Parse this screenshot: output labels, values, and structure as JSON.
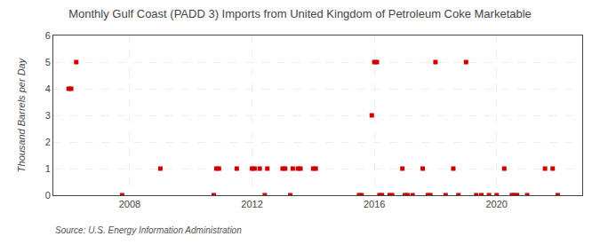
{
  "chart_data": {
    "type": "scatter",
    "title": "Monthly Gulf Coast (PADD 3) Imports from United Kingdom of Petroleum Coke Marketable",
    "ylabel": "Thousand Barrels per Day",
    "annotations": [
      "Source: U.S. Energy Information Administration"
    ],
    "x": [
      2006.0,
      2006.083,
      2006.25,
      2007.75,
      2009.0,
      2010.75,
      2010.917,
      2010.833,
      2011.5,
      2012.0,
      2012.083,
      2012.25,
      2012.417,
      2012.5,
      2013.0,
      2013.083,
      2013.25,
      2013.333,
      2013.5,
      2013.583,
      2014.0,
      2014.083,
      2015.5,
      2015.583,
      2015.917,
      2016.0,
      2016.083,
      2016.167,
      2016.25,
      2016.5,
      2016.583,
      2016.917,
      2017.0,
      2017.083,
      2017.25,
      2017.583,
      2017.75,
      2017.833,
      2018.0,
      2018.333,
      2018.583,
      2018.75,
      2019.0,
      2019.333,
      2019.5,
      2019.75,
      2020.0,
      2020.25,
      2020.5,
      2020.583,
      2020.667,
      2021.0,
      2021.583,
      2021.833,
      2022.0
    ],
    "values": [
      4,
      4,
      5,
      0,
      1,
      0,
      1,
      1,
      1,
      1,
      1,
      1,
      0,
      1,
      1,
      1,
      0,
      1,
      1,
      1,
      1,
      1,
      0,
      0,
      3,
      5,
      5,
      0,
      0,
      0,
      0,
      1,
      0,
      0,
      0,
      1,
      0,
      0,
      5,
      0,
      1,
      0,
      5,
      0,
      0,
      0,
      0,
      1,
      0,
      0,
      0,
      0,
      1,
      1,
      0
    ],
    "color": "#cc0000",
    "marker": "square",
    "xlim": [
      2005.5,
      2022.8
    ],
    "xticks": [
      2008,
      2012,
      2016,
      2020
    ],
    "ylim": [
      0,
      6
    ],
    "yticks": [
      0,
      1,
      2,
      3,
      4,
      5,
      6
    ],
    "grid": true
  }
}
